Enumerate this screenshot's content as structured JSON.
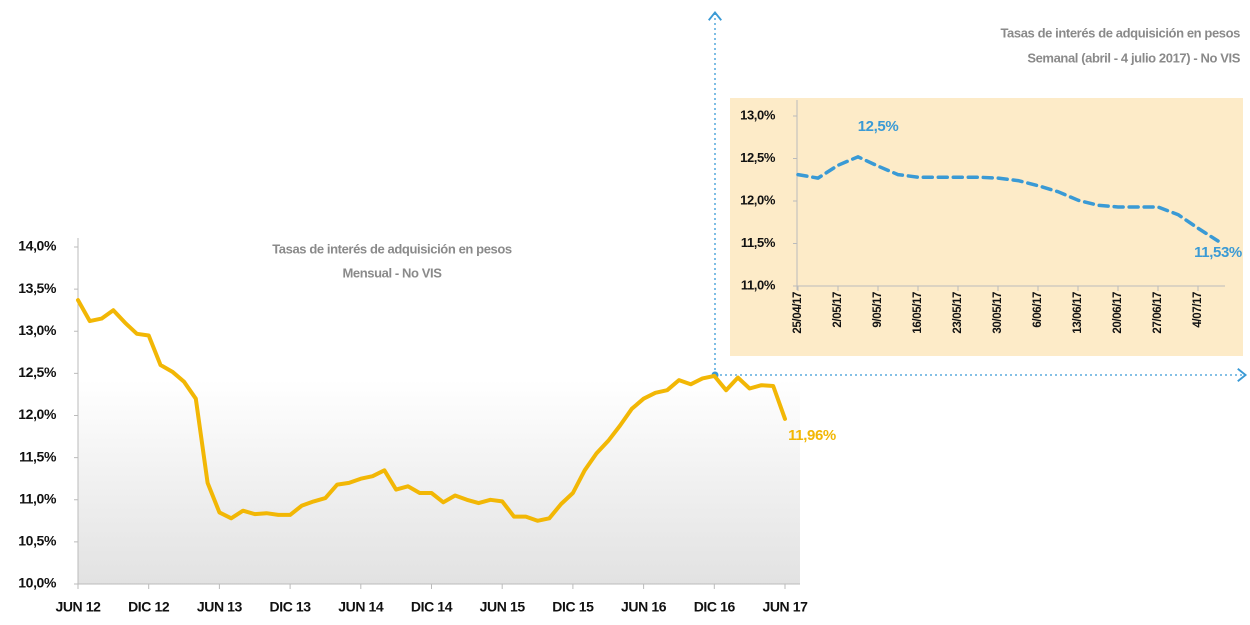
{
  "chart_data": [
    {
      "type": "line",
      "title": "Tasas de interés de adquisición en pesos",
      "subtitle": "Mensual - No VIS",
      "categories": [
        "JUN 12",
        null,
        null,
        null,
        null,
        null,
        "DIC 12",
        null,
        null,
        null,
        null,
        null,
        "JUN 13",
        null,
        null,
        null,
        null,
        null,
        "DIC 13",
        null,
        null,
        null,
        null,
        null,
        "JUN 14",
        null,
        null,
        null,
        null,
        null,
        "DIC 14",
        null,
        null,
        null,
        null,
        null,
        "JUN 15",
        null,
        null,
        null,
        null,
        null,
        "DIC 15",
        null,
        null,
        null,
        null,
        null,
        "JUN 16",
        null,
        null,
        null,
        null,
        null,
        "DIC 16",
        null,
        null,
        null,
        null,
        null,
        "JUN 17"
      ],
      "values": [
        13.37,
        13.12,
        13.15,
        13.25,
        13.1,
        12.97,
        12.95,
        12.6,
        12.52,
        12.4,
        12.2,
        11.2,
        10.85,
        10.78,
        10.87,
        10.83,
        10.84,
        10.82,
        10.82,
        10.93,
        10.98,
        11.02,
        11.18,
        11.2,
        11.25,
        11.28,
        11.35,
        11.12,
        11.16,
        11.08,
        11.08,
        10.97,
        11.05,
        11.0,
        10.96,
        11.0,
        10.98,
        10.8,
        10.8,
        10.75,
        10.78,
        10.95,
        11.08,
        11.35,
        11.55,
        11.7,
        11.88,
        12.08,
        12.2,
        12.27,
        12.3,
        12.42,
        12.37,
        12.44,
        12.47,
        12.3,
        12.45,
        12.32,
        12.36,
        12.35,
        11.96
      ],
      "value_labels": [
        null,
        null,
        null,
        null,
        null,
        null,
        null,
        null,
        null,
        null,
        null,
        null,
        null,
        null,
        null,
        null,
        null,
        null,
        null,
        null,
        null,
        null,
        null,
        null,
        null,
        null,
        null,
        null,
        null,
        null,
        null,
        null,
        null,
        null,
        null,
        null,
        null,
        null,
        null,
        null,
        null,
        null,
        null,
        null,
        null,
        null,
        null,
        null,
        null,
        null,
        null,
        null,
        null,
        null,
        null,
        null,
        null,
        null,
        null,
        null,
        "11,96%"
      ],
      "color": "#f2b705",
      "line_style": "solid",
      "ylim": [
        10,
        14
      ],
      "yticks": [
        {
          "value": 10,
          "label": "10,0%"
        },
        {
          "value": 10.5,
          "label": "10,5%"
        },
        {
          "value": 11,
          "label": "11,0%"
        },
        {
          "value": 11.5,
          "label": "11,5%"
        },
        {
          "value": 12,
          "label": "12,0%"
        },
        {
          "value": 12.5,
          "label": "12,5%"
        },
        {
          "value": 13,
          "label": "13,0%"
        },
        {
          "value": 13.5,
          "label": "13,5%"
        },
        {
          "value": 14,
          "label": "14,0%"
        }
      ]
    },
    {
      "type": "line",
      "title": "Tasas de interés de adquisición en pesos",
      "subtitle": "Semanal  (abril  - 4 julio 2017) - No VIS",
      "categories": [
        "25/04/17",
        null,
        "2/05/17",
        null,
        "9/05/17",
        null,
        "16/05/17",
        null,
        "23/05/17",
        null,
        "30/05/17",
        null,
        "6/06/17",
        null,
        "13/06/17",
        null,
        "20/06/17",
        null,
        "27/06/17",
        null,
        "4/07/17",
        null
      ],
      "values": [
        12.31,
        12.27,
        12.42,
        12.52,
        12.41,
        12.31,
        12.28,
        12.28,
        12.28,
        12.28,
        12.27,
        12.24,
        12.18,
        12.11,
        12.01,
        11.95,
        11.93,
        11.93,
        11.93,
        11.84,
        11.68,
        11.53
      ],
      "value_labels": [
        null,
        null,
        null,
        "12,5%",
        null,
        null,
        null,
        null,
        null,
        null,
        null,
        null,
        null,
        null,
        null,
        null,
        null,
        null,
        null,
        null,
        null,
        "11,53%"
      ],
      "color": "#3a9ad5",
      "line_style": "dashed",
      "background": "#fdebc8",
      "ylim": [
        11,
        13
      ],
      "yticks": [
        {
          "value": 11,
          "label": "11,0%"
        },
        {
          "value": 11.5,
          "label": "11,5%"
        },
        {
          "value": 12,
          "label": "12,0%"
        },
        {
          "value": 12.5,
          "label": "12,5%"
        },
        {
          "value": 13,
          "label": "13,0%"
        }
      ]
    }
  ]
}
